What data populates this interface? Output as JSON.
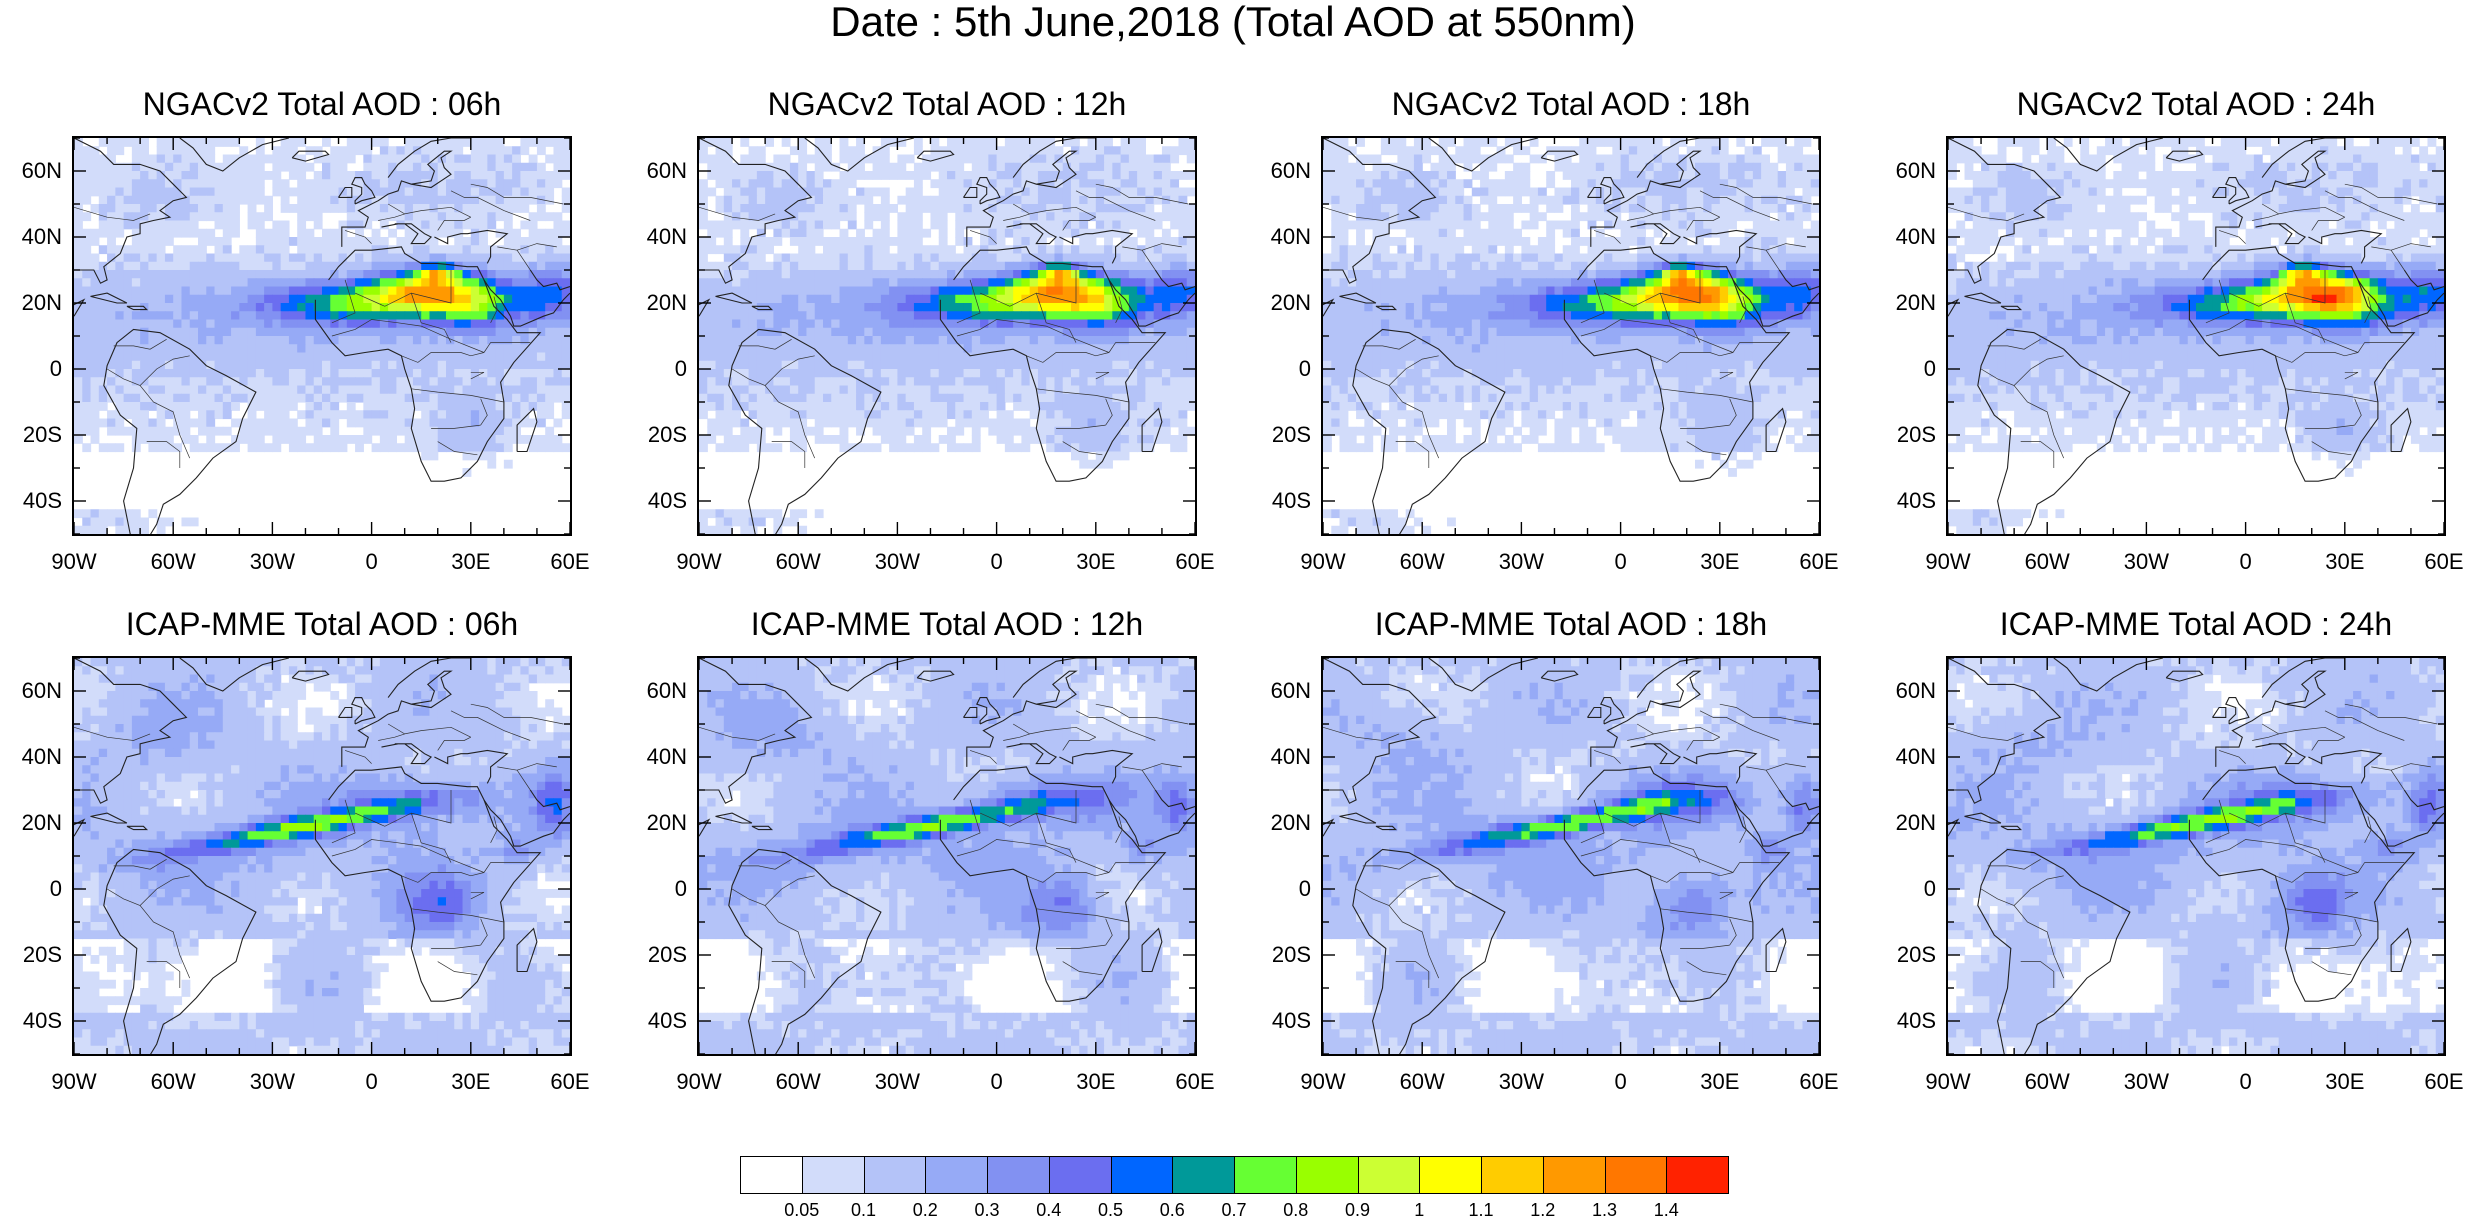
{
  "title": "Date : 5th June,2018 (Total AOD at 550nm)",
  "panels": [
    {
      "title": "NGACv2 Total AOD : 06h",
      "model": "ngac",
      "shift": 0
    },
    {
      "title": "NGACv2 Total AOD : 12h",
      "model": "ngac",
      "shift": 2
    },
    {
      "title": "NGACv2 Total AOD : 18h",
      "model": "ngac",
      "shift": 4
    },
    {
      "title": "NGACv2 Total AOD : 24h",
      "model": "ngac",
      "shift": 6
    },
    {
      "title": "ICAP-MME Total AOD : 06h",
      "model": "icap",
      "shift": 0
    },
    {
      "title": "ICAP-MME Total AOD : 12h",
      "model": "icap",
      "shift": 2
    },
    {
      "title": "ICAP-MME Total AOD : 18h",
      "model": "icap",
      "shift": 4
    },
    {
      "title": "ICAP-MME Total AOD : 24h",
      "model": "icap",
      "shift": 6
    }
  ],
  "map": {
    "lon_range": [
      -90,
      60
    ],
    "lat_range": [
      -50,
      70
    ],
    "lat_ticks": [
      "60N",
      "40N",
      "20N",
      "0",
      "20S",
      "40S"
    ],
    "lat_tick_values": [
      60,
      40,
      20,
      0,
      -20,
      -40
    ],
    "lon_ticks": [
      "90W",
      "60W",
      "30W",
      "0",
      "30E",
      "60E"
    ],
    "lon_tick_values": [
      -90,
      -60,
      -30,
      0,
      30,
      60
    ]
  },
  "colorbar": {
    "colors": [
      "#ffffff",
      "#d2dcfa",
      "#b4c3f8",
      "#96aaf6",
      "#8291f2",
      "#6b6ef0",
      "#0066ff",
      "#009999",
      "#66ff33",
      "#99ff00",
      "#ccff33",
      "#ffff00",
      "#ffcc00",
      "#ff9900",
      "#ff7700",
      "#ff2200"
    ],
    "labels": [
      "0.05",
      "0.1",
      "0.2",
      "0.3",
      "0.4",
      "0.5",
      "0.6",
      "0.7",
      "0.8",
      "0.9",
      "1",
      "1.1",
      "1.2",
      "1.3",
      "1.4"
    ]
  }
}
